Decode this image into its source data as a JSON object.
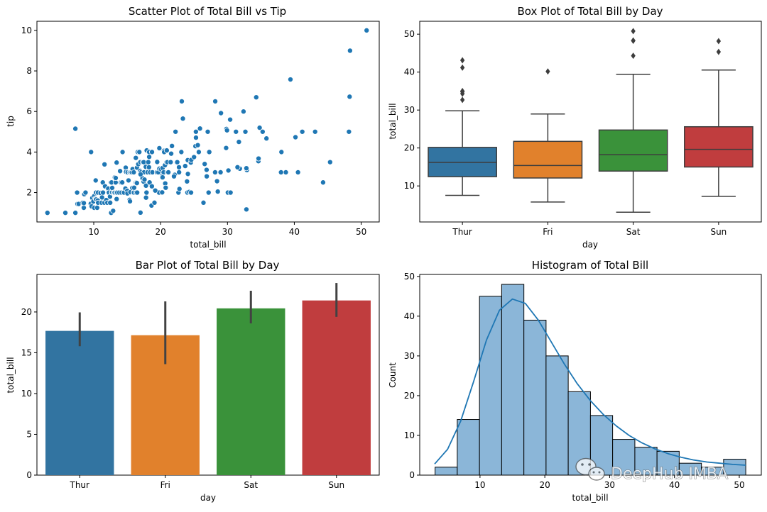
{
  "watermark": {
    "text": "DeepHub IMBA"
  },
  "colors": {
    "scatter_point": "#1f77b4",
    "thur": "#3274a1",
    "fri": "#e1812c",
    "sat": "#3a923a",
    "sun": "#c03d3e",
    "errbar": "#424242",
    "hist_fill": "#8bb6d8",
    "kde": "#1f77b4"
  },
  "chart_data": [
    {
      "type": "scatter",
      "title": "Scatter Plot of Total Bill vs Tip",
      "xlabel": "total_bill",
      "ylabel": "tip",
      "xlim": [
        1.5,
        52.7
      ],
      "ylim": [
        0.55,
        10.45
      ],
      "xticks": [
        10,
        20,
        30,
        40,
        50
      ],
      "yticks": [
        2,
        4,
        6,
        8,
        10
      ],
      "points": [
        [
          3.07,
          1.0
        ],
        [
          5.75,
          1.0
        ],
        [
          7.25,
          1.0
        ],
        [
          7.25,
          5.15
        ],
        [
          7.51,
          2.0
        ],
        [
          7.56,
          1.44
        ],
        [
          7.74,
          1.44
        ],
        [
          8.35,
          1.5
        ],
        [
          8.51,
          1.25
        ],
        [
          8.52,
          1.48
        ],
        [
          8.58,
          1.92
        ],
        [
          8.77,
          2.0
        ],
        [
          9.55,
          1.45
        ],
        [
          9.6,
          4.0
        ],
        [
          9.68,
          1.32
        ],
        [
          9.78,
          1.73
        ],
        [
          9.94,
          1.56
        ],
        [
          10.07,
          1.83
        ],
        [
          10.07,
          1.25
        ],
        [
          10.27,
          1.71
        ],
        [
          10.29,
          2.6
        ],
        [
          10.33,
          1.67
        ],
        [
          10.33,
          2.0
        ],
        [
          10.34,
          1.66
        ],
        [
          10.34,
          2.0
        ],
        [
          10.51,
          1.25
        ],
        [
          10.59,
          1.61
        ],
        [
          10.63,
          2.0
        ],
        [
          10.65,
          1.5
        ],
        [
          11.02,
          1.98
        ],
        [
          11.17,
          1.5
        ],
        [
          11.24,
          1.76
        ],
        [
          11.35,
          2.5
        ],
        [
          11.38,
          2.0
        ],
        [
          11.59,
          1.5
        ],
        [
          11.61,
          3.39
        ],
        [
          11.69,
          2.31
        ],
        [
          11.87,
          1.63
        ],
        [
          12.03,
          1.5
        ],
        [
          12.16,
          2.2
        ],
        [
          12.26,
          2.0
        ],
        [
          12.43,
          1.8
        ],
        [
          12.46,
          1.5
        ],
        [
          12.54,
          2.5
        ],
        [
          12.6,
          1.0
        ],
        [
          12.66,
          2.5
        ],
        [
          12.69,
          2.0
        ],
        [
          12.74,
          2.01
        ],
        [
          12.76,
          2.23
        ],
        [
          12.9,
          1.1
        ],
        [
          13.0,
          2.0
        ],
        [
          13.03,
          2.0
        ],
        [
          13.13,
          2.0
        ],
        [
          13.16,
          2.75
        ],
        [
          13.27,
          2.5
        ],
        [
          13.28,
          2.72
        ],
        [
          13.37,
          2.0
        ],
        [
          13.42,
          3.48
        ],
        [
          13.42,
          1.68
        ],
        [
          13.51,
          2.0
        ],
        [
          13.81,
          2.0
        ],
        [
          13.94,
          3.06
        ],
        [
          14.07,
          2.5
        ],
        [
          14.15,
          2.0
        ],
        [
          14.26,
          2.5
        ],
        [
          14.31,
          4.0
        ],
        [
          14.48,
          2.0
        ],
        [
          14.52,
          2.0
        ],
        [
          14.73,
          2.2
        ],
        [
          14.78,
          3.23
        ],
        [
          14.83,
          3.02
        ],
        [
          15.01,
          2.09
        ],
        [
          15.04,
          1.96
        ],
        [
          15.06,
          3.0
        ],
        [
          15.36,
          1.64
        ],
        [
          15.38,
          3.0
        ],
        [
          15.42,
          1.57
        ],
        [
          15.48,
          2.02
        ],
        [
          15.53,
          3.0
        ],
        [
          15.69,
          3.0
        ],
        [
          15.77,
          2.23
        ],
        [
          15.81,
          3.16
        ],
        [
          15.95,
          2.0
        ],
        [
          15.98,
          3.0
        ],
        [
          16.0,
          2.0
        ],
        [
          16.04,
          2.24
        ],
        [
          16.27,
          2.5
        ],
        [
          16.29,
          3.71
        ],
        [
          16.31,
          2.0
        ],
        [
          16.4,
          2.5
        ],
        [
          16.45,
          2.47
        ],
        [
          16.47,
          3.23
        ],
        [
          16.49,
          2.0
        ],
        [
          16.58,
          4.0
        ],
        [
          16.66,
          3.4
        ],
        [
          16.82,
          4.0
        ],
        [
          16.93,
          3.07
        ],
        [
          16.97,
          3.5
        ],
        [
          16.99,
          1.01
        ],
        [
          17.07,
          3.0
        ],
        [
          17.26,
          2.74
        ],
        [
          17.29,
          2.71
        ],
        [
          17.31,
          3.5
        ],
        [
          17.46,
          2.54
        ],
        [
          17.47,
          3.5
        ],
        [
          17.51,
          3.0
        ],
        [
          17.59,
          2.64
        ],
        [
          17.78,
          3.27
        ],
        [
          17.81,
          2.34
        ],
        [
          17.82,
          1.75
        ],
        [
          17.89,
          2.0
        ],
        [
          17.92,
          4.08
        ],
        [
          18.04,
          3.0
        ],
        [
          18.15,
          3.5
        ],
        [
          18.24,
          3.76
        ],
        [
          18.26,
          3.25
        ],
        [
          18.28,
          4.0
        ],
        [
          18.29,
          3.76
        ],
        [
          18.35,
          2.5
        ],
        [
          18.43,
          3.0
        ],
        [
          18.64,
          1.36
        ],
        [
          18.69,
          2.31
        ],
        [
          18.71,
          4.0
        ],
        [
          18.78,
          3.0
        ],
        [
          19.08,
          1.5
        ],
        [
          19.44,
          3.0
        ],
        [
          19.49,
          3.51
        ],
        [
          19.65,
          3.0
        ],
        [
          19.77,
          2.0
        ],
        [
          19.81,
          4.19
        ],
        [
          19.82,
          3.18
        ],
        [
          20.08,
          3.15
        ],
        [
          20.23,
          2.01
        ],
        [
          20.27,
          2.83
        ],
        [
          20.29,
          2.75
        ],
        [
          20.29,
          3.21
        ],
        [
          20.45,
          3.0
        ],
        [
          20.49,
          4.06
        ],
        [
          20.53,
          4.0
        ],
        [
          20.65,
          3.35
        ],
        [
          20.69,
          2.45
        ],
        [
          20.76,
          2.24
        ],
        [
          20.9,
          3.5
        ],
        [
          20.92,
          4.08
        ],
        [
          21.01,
          3.5
        ],
        [
          21.01,
          3.0
        ],
        [
          21.16,
          3.0
        ],
        [
          21.5,
          3.5
        ],
        [
          21.58,
          3.92
        ],
        [
          21.7,
          4.3
        ],
        [
          22.12,
          2.88
        ],
        [
          22.23,
          5.0
        ],
        [
          22.42,
          3.48
        ],
        [
          22.49,
          3.5
        ],
        [
          22.67,
          2.0
        ],
        [
          22.75,
          3.25
        ],
        [
          22.76,
          3.0
        ],
        [
          22.82,
          2.18
        ],
        [
          23.1,
          4.0
        ],
        [
          23.17,
          6.5
        ],
        [
          23.33,
          5.65
        ],
        [
          23.68,
          3.31
        ],
        [
          23.95,
          2.55
        ],
        [
          24.01,
          2.0
        ],
        [
          24.06,
          3.6
        ],
        [
          24.08,
          2.92
        ],
        [
          24.27,
          2.03
        ],
        [
          24.52,
          3.48
        ],
        [
          24.55,
          2.0
        ],
        [
          24.59,
          3.61
        ],
        [
          25.0,
          3.75
        ],
        [
          25.21,
          4.29
        ],
        [
          25.28,
          5.0
        ],
        [
          25.29,
          4.71
        ],
        [
          25.56,
          4.34
        ],
        [
          25.71,
          4.0
        ],
        [
          25.89,
          5.16
        ],
        [
          26.41,
          1.5
        ],
        [
          26.59,
          3.41
        ],
        [
          26.86,
          3.14
        ],
        [
          26.88,
          3.12
        ],
        [
          27.05,
          5.0
        ],
        [
          27.18,
          2.0
        ],
        [
          27.2,
          4.0
        ],
        [
          27.28,
          4.0
        ],
        [
          28.15,
          3.0
        ],
        [
          28.17,
          6.5
        ],
        [
          28.44,
          2.56
        ],
        [
          28.55,
          2.05
        ],
        [
          28.97,
          3.0
        ],
        [
          29.03,
          5.92
        ],
        [
          29.8,
          4.2
        ],
        [
          29.85,
          5.14
        ],
        [
          29.93,
          5.07
        ],
        [
          30.06,
          2.0
        ],
        [
          30.14,
          3.09
        ],
        [
          30.4,
          5.6
        ],
        [
          30.46,
          2.0
        ],
        [
          31.27,
          5.0
        ],
        [
          31.71,
          4.5
        ],
        [
          31.85,
          3.18
        ],
        [
          32.4,
          6.0
        ],
        [
          32.68,
          5.0
        ],
        [
          32.83,
          1.17
        ],
        [
          32.9,
          3.11
        ],
        [
          34.3,
          6.7
        ],
        [
          34.63,
          3.55
        ],
        [
          34.65,
          3.68
        ],
        [
          34.81,
          5.2
        ],
        [
          35.26,
          5.0
        ],
        [
          35.83,
          4.67
        ],
        [
          38.07,
          4.0
        ],
        [
          38.73,
          3.0
        ],
        [
          39.42,
          7.58
        ],
        [
          40.17,
          4.73
        ],
        [
          40.55,
          3.0
        ],
        [
          41.19,
          5.0
        ],
        [
          43.11,
          5.0
        ],
        [
          44.3,
          2.5
        ],
        [
          45.35,
          3.5
        ],
        [
          48.17,
          5.0
        ],
        [
          48.27,
          6.73
        ],
        [
          48.33,
          9.0
        ],
        [
          50.81,
          10.0
        ],
        [
          38.01,
          3.0
        ],
        [
          32.83,
          3.2
        ],
        [
          31.5,
          3.25
        ],
        [
          26.9,
          2.8
        ],
        [
          22.0,
          2.8
        ],
        [
          19.2,
          2.1
        ],
        [
          17.0,
          2.9
        ],
        [
          15.2,
          2.6
        ]
      ]
    },
    {
      "type": "box",
      "title": "Box Plot of Total Bill by Day",
      "xlabel": "day",
      "ylabel": "total_bill",
      "categories": [
        "Thur",
        "Fri",
        "Sat",
        "Sun"
      ],
      "ylim": [
        0.5,
        53.4
      ],
      "yticks": [
        10,
        20,
        30,
        40,
        50
      ],
      "boxes": [
        {
          "whislo": 7.51,
          "q1": 12.44,
          "med": 16.2,
          "q3": 20.16,
          "whishi": 29.8,
          "fliers": [
            32.68,
            34.3,
            34.83,
            35.0,
            41.19,
            43.11
          ]
        },
        {
          "whislo": 5.75,
          "q1": 12.09,
          "med": 15.38,
          "q3": 21.75,
          "whishi": 28.97,
          "fliers": [
            40.17
          ]
        },
        {
          "whislo": 3.07,
          "q1": 13.91,
          "med": 18.24,
          "q3": 24.74,
          "whishi": 39.42,
          "fliers": [
            44.3,
            48.27,
            48.33,
            50.81
          ]
        },
        {
          "whislo": 7.25,
          "q1": 14.99,
          "med": 19.63,
          "q3": 25.6,
          "whishi": 40.55,
          "fliers": [
            45.35,
            48.17
          ]
        }
      ]
    },
    {
      "type": "bar",
      "title": "Bar Plot of Total Bill by Day",
      "xlabel": "day",
      "ylabel": "total_bill",
      "categories": [
        "Thur",
        "Fri",
        "Sat",
        "Sun"
      ],
      "values": [
        17.68,
        17.15,
        20.44,
        21.41
      ],
      "ci_low": [
        15.8,
        13.6,
        18.6,
        19.4
      ],
      "ci_high": [
        19.95,
        21.3,
        22.6,
        23.55
      ],
      "ylim": [
        0,
        24.6
      ],
      "yticks": [
        0,
        5,
        10,
        15,
        20
      ]
    },
    {
      "type": "histogram",
      "title": "Histogram of Total Bill",
      "xlabel": "total_bill",
      "ylabel": "Count",
      "bin_edges": [
        3.07,
        6.49,
        9.92,
        13.34,
        16.77,
        20.19,
        23.61,
        27.04,
        30.46,
        33.89,
        37.31,
        40.73,
        44.16,
        47.58,
        51.0
      ],
      "counts": [
        2,
        14,
        45,
        48,
        39,
        30,
        21,
        15,
        9,
        7,
        6,
        3,
        2,
        4
      ],
      "kde_x": [
        3,
        5,
        7,
        9,
        11,
        13,
        15,
        17,
        19,
        21,
        23,
        25,
        27,
        29,
        31,
        33,
        35,
        37,
        39,
        41,
        43,
        45,
        47,
        49,
        51
      ],
      "kde_y": [
        2.8,
        6.5,
        13.5,
        23.5,
        34.0,
        41.5,
        44.3,
        43.2,
        39.0,
        33.5,
        28.0,
        23.0,
        18.8,
        15.3,
        12.4,
        10.0,
        8.1,
        6.6,
        5.4,
        4.5,
        3.8,
        3.3,
        3.0,
        2.7,
        2.5
      ],
      "xlim": [
        0.7,
        53.4
      ],
      "ylim": [
        0,
        50.5
      ],
      "xticks": [
        10,
        20,
        30,
        40,
        50
      ],
      "yticks": [
        0,
        10,
        20,
        30,
        40,
        50
      ]
    }
  ]
}
